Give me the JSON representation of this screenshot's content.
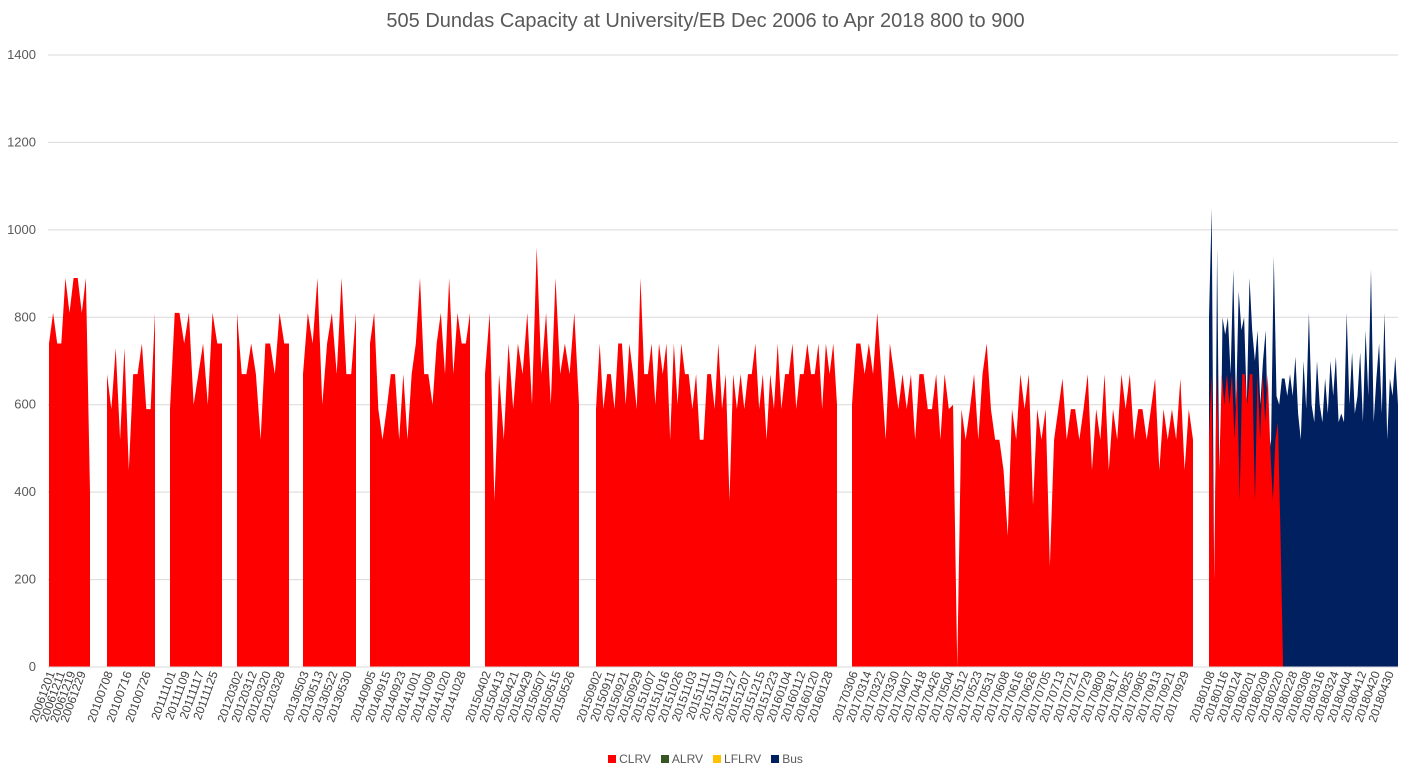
{
  "chart_data": {
    "type": "area",
    "title": "505 Dundas Capacity at University/EB Dec 2006 to Apr 2018  800 to 900",
    "xlabel": "",
    "ylabel": "",
    "ylim": [
      0,
      1400
    ],
    "yticks": [
      "0",
      "200",
      "400",
      "600",
      "800",
      "1000",
      "1200",
      "1400"
    ],
    "grid": "horizontal",
    "legend_position": "bottom",
    "legend": [
      {
        "name": "CLRV",
        "color": "#ff0000"
      },
      {
        "name": "ALRV",
        "color": "#375623"
      },
      {
        "name": "LFLRV",
        "color": "#ffc000"
      },
      {
        "name": "Bus",
        "color": "#002060"
      }
    ],
    "groups": [
      {
        "labels": [
          "20061201",
          "20061211",
          "20061219",
          "20061229"
        ],
        "clrv": [
          740,
          810,
          740,
          740,
          890,
          810,
          890,
          890,
          810,
          890,
          400
        ],
        "bus": []
      },
      {
        "labels": [
          "20100708",
          "20100716",
          "20100726"
        ],
        "clrv": [
          670,
          590,
          730,
          520,
          730,
          450,
          670,
          670,
          740,
          590,
          590,
          810
        ],
        "bus": []
      },
      {
        "labels": [
          "20111101",
          "20111109",
          "20111117",
          "20111125"
        ],
        "clrv": [
          590,
          810,
          810,
          740,
          810,
          600,
          670,
          740,
          600,
          810,
          740,
          740
        ],
        "bus": [
          0,
          0,
          0,
          0,
          0,
          0,
          0,
          0,
          0,
          810,
          0,
          0
        ]
      },
      {
        "labels": [
          "20120302",
          "20120312",
          "20120320",
          "20120328"
        ],
        "clrv": [
          810,
          670,
          670,
          740,
          670,
          520,
          740,
          740,
          670,
          810,
          740,
          740
        ],
        "bus": []
      },
      {
        "labels": [
          "20130503",
          "20130513",
          "20130522",
          "20130530"
        ],
        "clrv": [
          670,
          810,
          740,
          890,
          600,
          740,
          810,
          670,
          890,
          670,
          670,
          810
        ],
        "bus": []
      },
      {
        "labels": [
          "20140905",
          "20140915",
          "20140923",
          "20141001",
          "20141009",
          "20141020",
          "20141028"
        ],
        "clrv": [
          740,
          810,
          590,
          520,
          590,
          670,
          670,
          520,
          670,
          520,
          670,
          740,
          890,
          670,
          670,
          600,
          740,
          810,
          670,
          890,
          670,
          810,
          740,
          740,
          810
        ],
        "bus": []
      },
      {
        "labels": [
          "20150402",
          "20150413",
          "20150421",
          "20150429",
          "20150507",
          "20150515",
          "20150526"
        ],
        "clrv": [
          670,
          810,
          380,
          670,
          520,
          740,
          590,
          740,
          670,
          810,
          600,
          960,
          670,
          810,
          600,
          890,
          670,
          740,
          670,
          810,
          600
        ],
        "bus": []
      },
      {
        "labels": [
          "20150902",
          "20150911",
          "20150921",
          "20150929",
          "20151007",
          "20151016",
          "20151026",
          "20151103",
          "20151111",
          "20151119",
          "20151127",
          "20151207",
          "20151215",
          "20151223",
          "20160104",
          "20160112",
          "20160120",
          "20160128"
        ],
        "clrv": [
          590,
          740,
          590,
          670,
          670,
          590,
          740,
          740,
          600,
          740,
          670,
          590,
          890,
          670,
          670,
          740,
          600,
          740,
          670,
          740,
          520,
          740,
          600,
          740,
          670,
          670,
          590,
          670,
          520,
          520,
          670,
          670,
          590,
          740,
          590,
          670,
          380,
          670,
          590,
          670,
          590,
          670,
          670,
          740,
          590,
          670,
          520,
          670,
          590,
          740,
          590,
          670,
          670,
          740,
          590,
          670,
          670,
          740,
          670,
          670,
          740,
          590,
          740,
          670,
          740,
          600
        ],
        "bus": []
      },
      {
        "labels": [
          "20170306",
          "20170314",
          "20170322",
          "20170330",
          "20170407",
          "20170418",
          "20170426",
          "20170504",
          "20170512",
          "20170523",
          "20170531",
          "20170608",
          "20170616",
          "20170626",
          "20170705",
          "20170713",
          "20170721",
          "20170729",
          "20170809",
          "20170817",
          "20170825",
          "20170905",
          "20170913",
          "20170921",
          "20170929"
        ],
        "clrv": [
          600,
          740,
          740,
          670,
          740,
          670,
          810,
          670,
          520,
          740,
          670,
          590,
          670,
          590,
          670,
          520,
          670,
          670,
          590,
          590,
          670,
          520,
          670,
          590,
          600,
          0,
          590,
          520,
          590,
          670,
          520,
          670,
          740,
          590,
          520,
          520,
          450,
          300,
          590,
          520,
          670,
          590,
          670,
          370,
          590,
          520,
          590,
          230,
          520,
          590,
          660,
          520,
          590,
          590,
          520,
          590,
          670,
          450,
          590,
          520,
          670,
          450,
          590,
          520,
          670,
          590,
          670,
          520,
          590,
          590,
          520,
          590,
          660,
          450,
          590,
          520,
          590,
          520,
          660,
          450,
          590,
          520
        ],
        "bus": []
      },
      {
        "labels": [
          "20180108",
          "20180116",
          "20180124",
          "20180201",
          "20180209",
          "20180220",
          "20180228",
          "20180308",
          "20180316",
          "20180324",
          "20180404",
          "20180412",
          "20180420",
          "20180430"
        ],
        "clrv": [
          520,
          670,
          200,
          670,
          450,
          670,
          600,
          670,
          600,
          670,
          520,
          670,
          380,
          670,
          670,
          600,
          670,
          670,
          380,
          670,
          520,
          670,
          560,
          670,
          500,
          380,
          520,
          560,
          300,
          0,
          0,
          0,
          0,
          0,
          0,
          0,
          0,
          0,
          0,
          0,
          0,
          0,
          0,
          0,
          0,
          0,
          0,
          0,
          0,
          0,
          0,
          0,
          0,
          0,
          0,
          0,
          0,
          0,
          0,
          0,
          0,
          0,
          0,
          0,
          0,
          0,
          0,
          0,
          0,
          0,
          0,
          0,
          0,
          0,
          0
        ],
        "bus": [
          800,
          1050,
          90,
          960,
          300,
          800,
          760,
          800,
          670,
          910,
          590,
          860,
          770,
          800,
          600,
          890,
          770,
          700,
          770,
          600,
          700,
          770,
          480,
          520,
          940,
          620,
          600,
          660,
          660,
          620,
          670,
          620,
          710,
          580,
          520,
          700,
          590,
          810,
          600,
          560,
          700,
          600,
          560,
          660,
          580,
          700,
          620,
          710,
          560,
          580,
          560,
          810,
          600,
          720,
          580,
          620,
          720,
          560,
          770,
          620,
          910,
          560,
          660,
          740,
          580,
          810,
          520,
          660,
          620,
          710,
          600
        ]
      }
    ]
  }
}
